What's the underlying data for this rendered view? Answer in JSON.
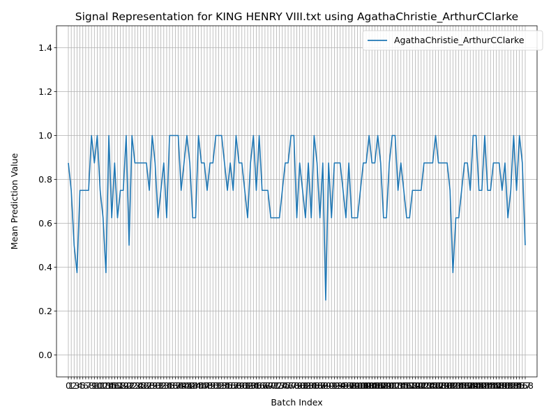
{
  "chart_data": {
    "type": "line",
    "title": "Signal Representation for KING HENRY VIII.txt using AgathaChristie_ArthurCClarke",
    "xlabel": "Batch Index",
    "ylabel": "Mean Prediction Value",
    "ylim": [
      -0.1,
      1.5
    ],
    "yticks": [
      "0.0",
      "0.2",
      "0.4",
      "0.6",
      "0.8",
      "1.0",
      "1.2",
      "1.4"
    ],
    "grid": true,
    "legend_position": "top-right",
    "series": [
      {
        "name": "AgathaChristie_ArthurCClarke",
        "color": "#1f77b4",
        "values": [
          0.875,
          0.75,
          0.5,
          0.375,
          0.75,
          0.75,
          0.75,
          0.75,
          1.0,
          0.875,
          1.0,
          0.75,
          0.625,
          0.375,
          1.0,
          0.625,
          0.875,
          0.625,
          0.75,
          0.75,
          1.0,
          0.5,
          1.0,
          0.875,
          0.875,
          0.875,
          0.875,
          0.875,
          0.75,
          1.0,
          0.875,
          0.625,
          0.75,
          0.875,
          0.625,
          1.0,
          1.0,
          1.0,
          1.0,
          0.75,
          0.875,
          1.0,
          0.875,
          0.625,
          0.625,
          1.0,
          0.875,
          0.875,
          0.75,
          0.875,
          0.875,
          1.0,
          1.0,
          1.0,
          0.875,
          0.75,
          0.875,
          0.75,
          1.0,
          0.875,
          0.875,
          0.75,
          0.625,
          0.875,
          1.0,
          0.75,
          1.0,
          0.75,
          0.75,
          0.75,
          0.625,
          0.625,
          0.625,
          0.625,
          0.75,
          0.875,
          0.875,
          1.0,
          1.0,
          0.625,
          0.875,
          0.75,
          0.625,
          0.875,
          0.625,
          1.0,
          0.875,
          0.625,
          0.875,
          0.25,
          0.875,
          0.625,
          0.875,
          0.875,
          0.875,
          0.75,
          0.625,
          0.875,
          0.625,
          0.625,
          0.625,
          0.75,
          0.875,
          0.875,
          1.0,
          0.875,
          0.875,
          1.0,
          0.875,
          0.625,
          0.625,
          0.875,
          1.0,
          1.0,
          0.75,
          0.875,
          0.75,
          0.625,
          0.625,
          0.75,
          0.75,
          0.75,
          0.75,
          0.875,
          0.875,
          0.875,
          0.875,
          1.0,
          0.875,
          0.875,
          0.875,
          0.875,
          0.75,
          0.375,
          0.625,
          0.625,
          0.75,
          0.875,
          0.875,
          0.75,
          1.0,
          1.0,
          0.75,
          0.75,
          1.0,
          0.75,
          0.75,
          0.875,
          0.875,
          0.875,
          0.75,
          0.875,
          0.625,
          0.75,
          1.0,
          0.75,
          1.0,
          0.875,
          0.5
        ]
      }
    ]
  }
}
